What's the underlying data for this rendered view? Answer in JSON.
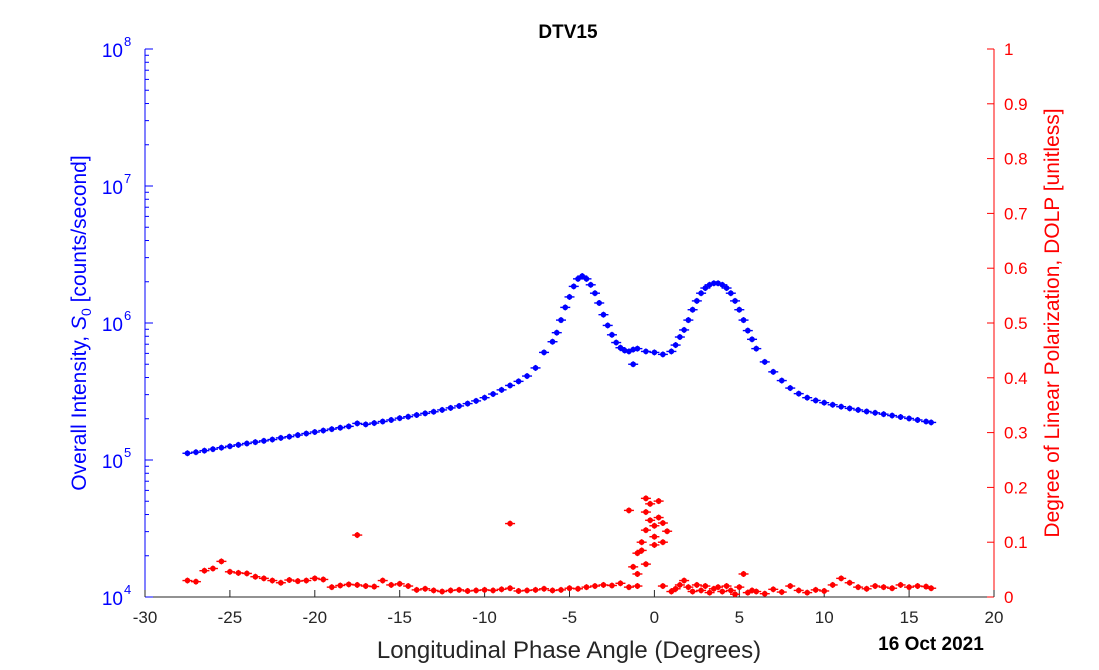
{
  "chart_data": {
    "type": "scatter",
    "title": "DTV15",
    "xlabel": "Longitudinal Phase Angle (Degrees)",
    "ylabel_left": "Overall Intensity, S_0 [counts/second]",
    "ylabel_right": "Degree of Linear Polarization, DOLP [unitless]",
    "date_label": "16 Oct 2021",
    "xlim": [
      -30,
      20
    ],
    "xticks": [
      -30,
      -25,
      -20,
      -15,
      -10,
      -5,
      0,
      5,
      10,
      15,
      20
    ],
    "ylim_left": [
      10000,
      100000000
    ],
    "yscale_left": "log",
    "yticks_left": [
      {
        "base": "10",
        "exp": "4"
      },
      {
        "base": "10",
        "exp": "5"
      },
      {
        "base": "10",
        "exp": "6"
      },
      {
        "base": "10",
        "exp": "7"
      },
      {
        "base": "10",
        "exp": "8"
      }
    ],
    "ylim_right": [
      0,
      1
    ],
    "yticks_right": [
      "0",
      "0.1",
      "0.2",
      "0.3",
      "0.4",
      "0.5",
      "0.6",
      "0.7",
      "0.8",
      "0.9",
      "1"
    ],
    "grid": false,
    "colors": {
      "left": "#0000ff",
      "right": "#ff0000",
      "axis": "#262626"
    },
    "series": [
      {
        "axis": "left",
        "color": "#0000ff",
        "marker": "dot-with-error-bars",
        "points": [
          [
            -27.5,
            112000
          ],
          [
            -27.0,
            114000
          ],
          [
            -26.5,
            117000
          ],
          [
            -26.0,
            120000
          ],
          [
            -25.5,
            123000
          ],
          [
            -25.0,
            126000
          ],
          [
            -24.5,
            129000
          ],
          [
            -24.0,
            132000
          ],
          [
            -23.5,
            135000
          ],
          [
            -23.0,
            138000
          ],
          [
            -22.5,
            141000
          ],
          [
            -22.0,
            145000
          ],
          [
            -21.5,
            148000
          ],
          [
            -21.0,
            152000
          ],
          [
            -20.5,
            156000
          ],
          [
            -20.0,
            160000
          ],
          [
            -19.5,
            164000
          ],
          [
            -19.0,
            168000
          ],
          [
            -18.5,
            172000
          ],
          [
            -18.0,
            176000
          ],
          [
            -17.5,
            185000
          ],
          [
            -17.0,
            182000
          ],
          [
            -16.5,
            186000
          ],
          [
            -16.0,
            191000
          ],
          [
            -15.5,
            196000
          ],
          [
            -15.0,
            202000
          ],
          [
            -14.5,
            207000
          ],
          [
            -14.0,
            213000
          ],
          [
            -13.5,
            219000
          ],
          [
            -13.0,
            225000
          ],
          [
            -12.5,
            232000
          ],
          [
            -12.0,
            240000
          ],
          [
            -11.5,
            248000
          ],
          [
            -11.0,
            258000
          ],
          [
            -10.5,
            270000
          ],
          [
            -10.0,
            285000
          ],
          [
            -9.5,
            303000
          ],
          [
            -9.0,
            325000
          ],
          [
            -8.5,
            350000
          ],
          [
            -8.0,
            375000
          ],
          [
            -7.5,
            410000
          ],
          [
            -7.0,
            470000
          ],
          [
            -6.5,
            610000
          ],
          [
            -6.0,
            730000
          ],
          [
            -5.75,
            850000
          ],
          [
            -5.5,
            1050000
          ],
          [
            -5.25,
            1300000
          ],
          [
            -5.0,
            1550000
          ],
          [
            -4.75,
            1850000
          ],
          [
            -4.5,
            2100000
          ],
          [
            -4.25,
            2200000
          ],
          [
            -4.0,
            2100000
          ],
          [
            -3.75,
            1900000
          ],
          [
            -3.5,
            1650000
          ],
          [
            -3.25,
            1400000
          ],
          [
            -3.0,
            1150000
          ],
          [
            -2.75,
            960000
          ],
          [
            -2.5,
            820000
          ],
          [
            -2.25,
            720000
          ],
          [
            -2.0,
            660000
          ],
          [
            -1.75,
            630000
          ],
          [
            -1.5,
            620000
          ],
          [
            -1.25,
            640000
          ],
          [
            -1.0,
            650000
          ],
          [
            -1.25,
            500000
          ],
          [
            -0.5,
            620000
          ],
          [
            0.0,
            610000
          ],
          [
            0.5,
            590000
          ],
          [
            1.0,
            620000
          ],
          [
            1.25,
            690000
          ],
          [
            1.5,
            790000
          ],
          [
            1.75,
            890000
          ],
          [
            2.0,
            1050000
          ],
          [
            2.25,
            1250000
          ],
          [
            2.5,
            1450000
          ],
          [
            2.75,
            1650000
          ],
          [
            3.0,
            1800000
          ],
          [
            3.25,
            1900000
          ],
          [
            3.5,
            1950000
          ],
          [
            3.75,
            1950000
          ],
          [
            4.0,
            1900000
          ],
          [
            4.25,
            1800000
          ],
          [
            4.5,
            1650000
          ],
          [
            4.75,
            1450000
          ],
          [
            5.0,
            1250000
          ],
          [
            5.25,
            1050000
          ],
          [
            5.5,
            880000
          ],
          [
            5.75,
            760000
          ],
          [
            6.0,
            650000
          ],
          [
            6.5,
            520000
          ],
          [
            7.0,
            440000
          ],
          [
            7.5,
            380000
          ],
          [
            8.0,
            335000
          ],
          [
            8.5,
            305000
          ],
          [
            9.0,
            285000
          ],
          [
            9.5,
            272000
          ],
          [
            10.0,
            262000
          ],
          [
            10.5,
            253000
          ],
          [
            11.0,
            245000
          ],
          [
            11.5,
            238000
          ],
          [
            12.0,
            232000
          ],
          [
            12.5,
            226000
          ],
          [
            13.0,
            221000
          ],
          [
            13.5,
            216000
          ],
          [
            14.0,
            211000
          ],
          [
            14.5,
            206000
          ],
          [
            15.0,
            201000
          ],
          [
            15.5,
            196000
          ],
          [
            16.0,
            191000
          ],
          [
            16.3,
            188000
          ]
        ]
      },
      {
        "axis": "right",
        "color": "#ff0000",
        "marker": "dot-with-error-bars",
        "points": [
          [
            -27.5,
            0.03
          ],
          [
            -27.0,
            0.028
          ],
          [
            -26.5,
            0.048
          ],
          [
            -26.0,
            0.052
          ],
          [
            -25.5,
            0.065
          ],
          [
            -25.0,
            0.046
          ],
          [
            -24.5,
            0.044
          ],
          [
            -24.0,
            0.043
          ],
          [
            -23.5,
            0.037
          ],
          [
            -23.0,
            0.034
          ],
          [
            -22.5,
            0.03
          ],
          [
            -22.0,
            0.026
          ],
          [
            -21.5,
            0.031
          ],
          [
            -21.0,
            0.029
          ],
          [
            -20.5,
            0.03
          ],
          [
            -20.0,
            0.034
          ],
          [
            -19.5,
            0.032
          ],
          [
            -19.0,
            0.018
          ],
          [
            -18.5,
            0.021
          ],
          [
            -18.0,
            0.023
          ],
          [
            -17.5,
            0.022
          ],
          [
            -17.0,
            0.02
          ],
          [
            -16.5,
            0.019
          ],
          [
            -16.0,
            0.03
          ],
          [
            -15.5,
            0.022
          ],
          [
            -15.0,
            0.024
          ],
          [
            -14.5,
            0.02
          ],
          [
            -14.0,
            0.013
          ],
          [
            -13.5,
            0.015
          ],
          [
            -13.0,
            0.012
          ],
          [
            -12.5,
            0.01
          ],
          [
            -12.0,
            0.012
          ],
          [
            -11.5,
            0.013
          ],
          [
            -11.0,
            0.011
          ],
          [
            -10.5,
            0.012
          ],
          [
            -10.0,
            0.013
          ],
          [
            -9.5,
            0.012
          ],
          [
            -9.0,
            0.014
          ],
          [
            -8.5,
            0.016
          ],
          [
            -8.0,
            0.011
          ],
          [
            -7.5,
            0.012
          ],
          [
            -7.0,
            0.013
          ],
          [
            -6.5,
            0.015
          ],
          [
            -6.0,
            0.012
          ],
          [
            -5.5,
            0.013
          ],
          [
            -5.0,
            0.016
          ],
          [
            -4.5,
            0.015
          ],
          [
            -4.0,
            0.018
          ],
          [
            -3.5,
            0.02
          ],
          [
            -3.0,
            0.022
          ],
          [
            -2.5,
            0.021
          ],
          [
            -2.0,
            0.025
          ],
          [
            -1.5,
            0.018
          ],
          [
            -1.0,
            0.02
          ],
          [
            -17.5,
            0.113
          ],
          [
            -8.5,
            0.134
          ],
          [
            -1.5,
            0.158
          ],
          [
            -1.25,
            0.055
          ],
          [
            -1.0,
            0.08
          ],
          [
            -0.75,
            0.1
          ],
          [
            -0.5,
            0.122
          ],
          [
            -0.5,
            0.155
          ],
          [
            -0.5,
            0.18
          ],
          [
            -0.25,
            0.14
          ],
          [
            -0.25,
            0.17
          ],
          [
            0.0,
            0.13
          ],
          [
            0.0,
            0.11
          ],
          [
            0.25,
            0.175
          ],
          [
            0.25,
            0.145
          ],
          [
            0.5,
            0.135
          ],
          [
            0.75,
            0.12
          ],
          [
            0.5,
            0.1
          ],
          [
            0.0,
            0.095
          ],
          [
            -0.75,
            0.085
          ],
          [
            -0.5,
            0.06
          ],
          [
            -1.0,
            0.042
          ],
          [
            0.5,
            0.02
          ],
          [
            1.0,
            0.01
          ],
          [
            1.25,
            0.015
          ],
          [
            1.5,
            0.022
          ],
          [
            1.75,
            0.03
          ],
          [
            2.0,
            0.018
          ],
          [
            2.25,
            0.01
          ],
          [
            2.5,
            0.022
          ],
          [
            2.75,
            0.012
          ],
          [
            3.0,
            0.02
          ],
          [
            3.25,
            0.008
          ],
          [
            3.5,
            0.015
          ],
          [
            3.75,
            0.018
          ],
          [
            4.0,
            0.01
          ],
          [
            4.25,
            0.02
          ],
          [
            4.5,
            0.012
          ],
          [
            4.75,
            0.005
          ],
          [
            5.0,
            0.018
          ],
          [
            5.25,
            0.042
          ],
          [
            5.5,
            0.008
          ],
          [
            5.75,
            0.012
          ],
          [
            6.0,
            0.01
          ],
          [
            6.5,
            0.006
          ],
          [
            7.0,
            0.014
          ],
          [
            7.5,
            0.009
          ],
          [
            8.0,
            0.02
          ],
          [
            8.5,
            0.012
          ],
          [
            9.0,
            0.008
          ],
          [
            9.5,
            0.013
          ],
          [
            10.0,
            0.011
          ],
          [
            10.5,
            0.022
          ],
          [
            11.0,
            0.034
          ],
          [
            11.5,
            0.026
          ],
          [
            12.0,
            0.018
          ],
          [
            12.5,
            0.015
          ],
          [
            13.0,
            0.02
          ],
          [
            13.5,
            0.018
          ],
          [
            14.0,
            0.016
          ],
          [
            14.5,
            0.022
          ],
          [
            15.0,
            0.018
          ],
          [
            15.5,
            0.02
          ],
          [
            16.0,
            0.019
          ],
          [
            16.3,
            0.016
          ]
        ]
      }
    ]
  }
}
